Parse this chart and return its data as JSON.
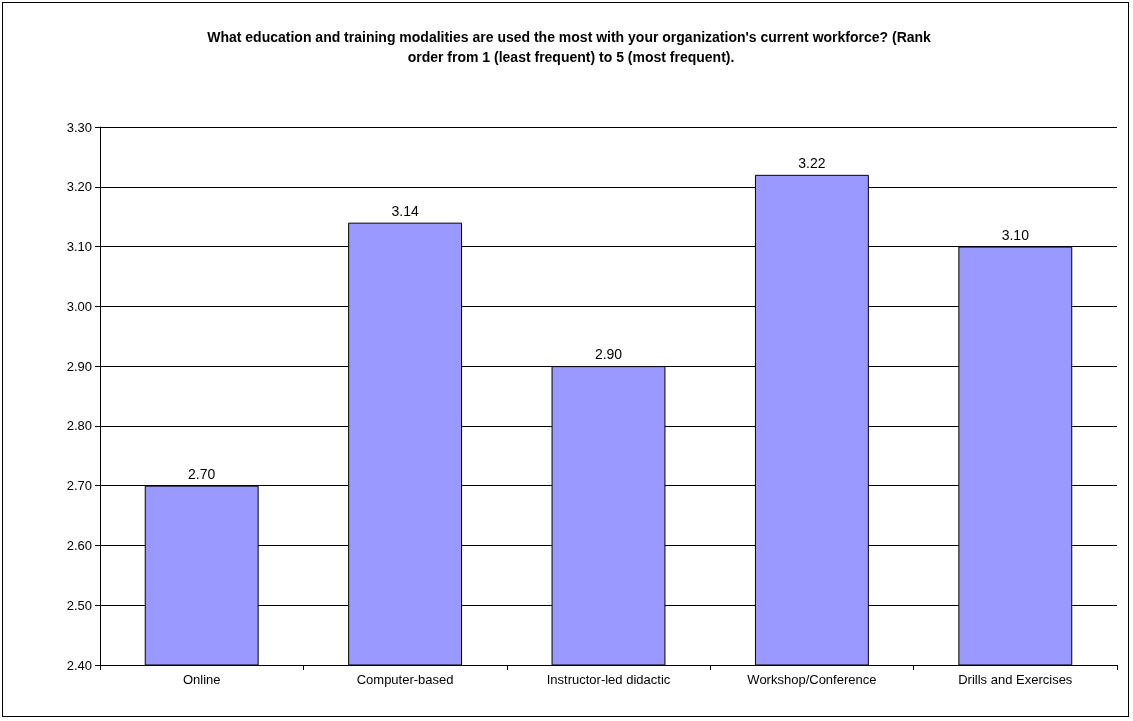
{
  "chart_data": {
    "type": "bar",
    "title": "What education and training modalities are used the most with your organization's current workforce? (Rank order from 1 (least frequent) to 5 (most frequent).",
    "categories": [
      "Online",
      "Computer-based",
      "Instructor-led didactic",
      "Workshop/Conference",
      "Drills and Exercises"
    ],
    "values": [
      2.7,
      3.14,
      2.9,
      3.22,
      3.1
    ],
    "value_labels": [
      "2.70",
      "3.14",
      "2.90",
      "3.22",
      "3.10"
    ],
    "color": "#9999ff",
    "ylim": [
      2.4,
      3.3
    ],
    "yticks": [
      {
        "value": 2.4,
        "label": "2.40"
      },
      {
        "value": 2.5,
        "label": "2.50"
      },
      {
        "value": 2.6,
        "label": "2.60"
      },
      {
        "value": 2.7,
        "label": "2.70"
      },
      {
        "value": 2.8,
        "label": "2.80"
      },
      {
        "value": 2.9,
        "label": "2.90"
      },
      {
        "value": 3.0,
        "label": "3.00"
      },
      {
        "value": 3.1,
        "label": "3.10"
      },
      {
        "value": 3.2,
        "label": "3.20"
      },
      {
        "value": 3.3,
        "label": "3.30"
      }
    ],
    "grid": "y"
  }
}
